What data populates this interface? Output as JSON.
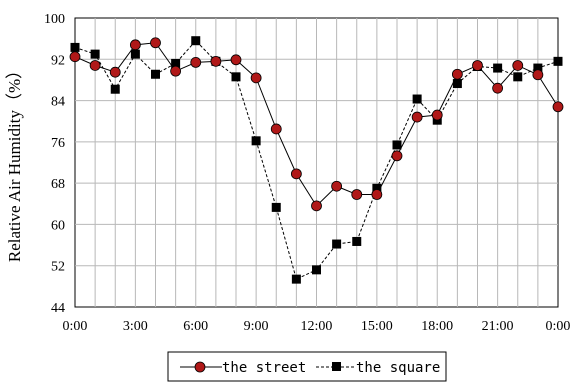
{
  "chart_data": {
    "type": "line",
    "xlabel": "",
    "ylabel": "Relative Air Humidity（%）",
    "ylim": [
      44,
      100
    ],
    "yticks": [
      44,
      52,
      60,
      68,
      76,
      84,
      92,
      100
    ],
    "xlim": [
      0,
      24
    ],
    "xticks": [
      0,
      3,
      6,
      9,
      12,
      15,
      18,
      21,
      24
    ],
    "xtick_labels": [
      "0:00",
      "3:00",
      "6:00",
      "9:00",
      "12:00",
      "15:00",
      "18:00",
      "21:00",
      "0:00"
    ],
    "grid": true,
    "legend_position": "bottom",
    "x": [
      0,
      1,
      2,
      3,
      4,
      5,
      6,
      7,
      8,
      9,
      10,
      11,
      12,
      13,
      14,
      15,
      16,
      17,
      18,
      19,
      20,
      21,
      22,
      23,
      24
    ],
    "series": [
      {
        "name": "the street",
        "marker": "circle",
        "line_style": "solid",
        "marker_color": "#b01818",
        "values": [
          92.5,
          90.8,
          89.5,
          94.8,
          95.2,
          89.7,
          91.4,
          91.6,
          91.9,
          88.4,
          78.5,
          69.8,
          63.6,
          67.4,
          65.8,
          65.8,
          73.3,
          80.8,
          81.2,
          89.1,
          90.8,
          86.4,
          90.8,
          89.0,
          82.8
        ]
      },
      {
        "name": "the square",
        "marker": "square",
        "line_style": "dashed",
        "marker_color": "#000000",
        "values": [
          94.3,
          93.0,
          86.2,
          93.0,
          89.1,
          91.2,
          95.6,
          91.6,
          88.6,
          76.2,
          63.3,
          49.4,
          51.2,
          56.2,
          56.7,
          67.0,
          75.4,
          84.3,
          80.2,
          87.3,
          90.6,
          90.3,
          88.6,
          90.3,
          91.6
        ]
      }
    ]
  }
}
